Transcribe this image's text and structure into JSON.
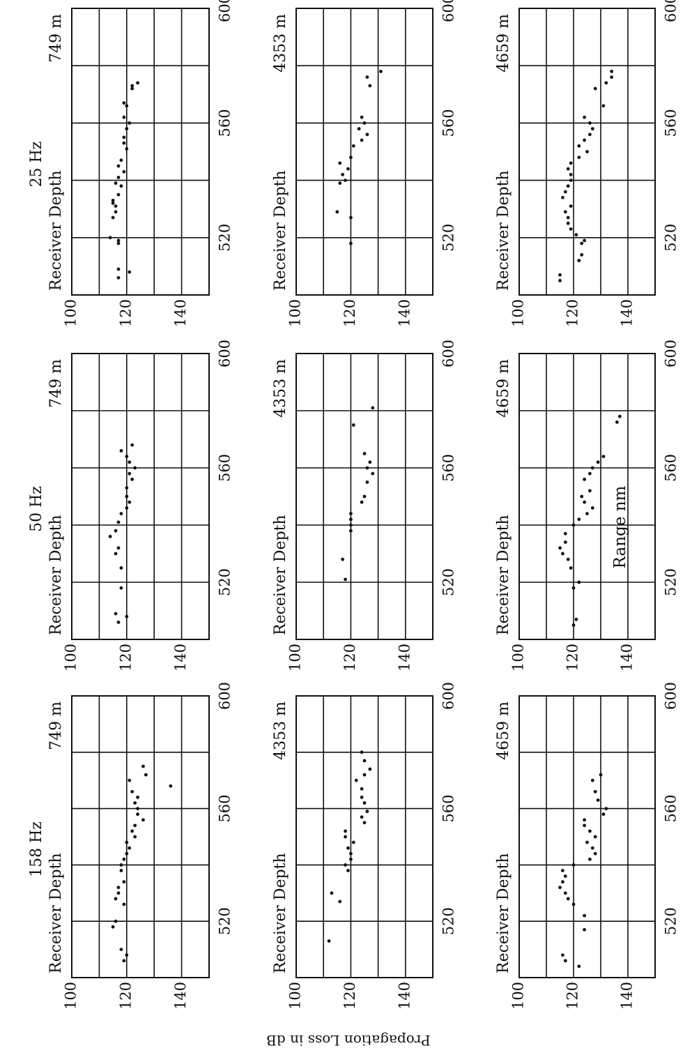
{
  "axis_labels": {
    "x": "Range nm",
    "y": "Propagation Loss in dB"
  },
  "colors": {
    "ink": "#111111",
    "paper": "#ffffff"
  },
  "chart_data": [
    {
      "type": "scatter",
      "frequency": "25 Hz",
      "depth_label": "Receiver Depth",
      "depth": "749 m",
      "xticks": [
        520,
        560,
        600
      ],
      "yticks": [
        100,
        120,
        140
      ],
      "xlim": [
        500,
        600
      ],
      "ylim": [
        100,
        150
      ],
      "grid": true,
      "points": [
        [
          506,
          117
        ],
        [
          508,
          121
        ],
        [
          509,
          117
        ],
        [
          518,
          117
        ],
        [
          519,
          117
        ],
        [
          520,
          114
        ],
        [
          527,
          115
        ],
        [
          529,
          116
        ],
        [
          531,
          116
        ],
        [
          532,
          115
        ],
        [
          533,
          115
        ],
        [
          535,
          117
        ],
        [
          538,
          118
        ],
        [
          539,
          116
        ],
        [
          541,
          117
        ],
        [
          543,
          119
        ],
        [
          545,
          117
        ],
        [
          547,
          118
        ],
        [
          551,
          120
        ],
        [
          553,
          119
        ],
        [
          555,
          119
        ],
        [
          558,
          120
        ],
        [
          560,
          121
        ],
        [
          562,
          119
        ],
        [
          566,
          120
        ],
        [
          567,
          119
        ],
        [
          572,
          122
        ],
        [
          573,
          122
        ],
        [
          574,
          124
        ]
      ]
    },
    {
      "type": "scatter",
      "frequency": "50 Hz",
      "depth_label": "Receiver Depth",
      "depth": "749 m",
      "xticks": [
        520,
        560,
        600
      ],
      "yticks": [
        100,
        120,
        140
      ],
      "xlim": [
        500,
        600
      ],
      "ylim": [
        100,
        150
      ],
      "grid": true,
      "points": [
        [
          506,
          117
        ],
        [
          508,
          120
        ],
        [
          509,
          116
        ],
        [
          518,
          118
        ],
        [
          525,
          118
        ],
        [
          530,
          116
        ],
        [
          532,
          117
        ],
        [
          536,
          114
        ],
        [
          538,
          116
        ],
        [
          541,
          117
        ],
        [
          544,
          118
        ],
        [
          546,
          120
        ],
        [
          548,
          121
        ],
        [
          550,
          120
        ],
        [
          553,
          120
        ],
        [
          556,
          122
        ],
        [
          558,
          121
        ],
        [
          560,
          123
        ],
        [
          562,
          121
        ],
        [
          564,
          120
        ],
        [
          566,
          118
        ],
        [
          568,
          122
        ]
      ]
    },
    {
      "type": "scatter",
      "frequency": "158 Hz",
      "depth_label": "Receiver Depth",
      "depth": "749 m",
      "xticks": [
        520,
        560,
        600
      ],
      "yticks": [
        100,
        120,
        140
      ],
      "xlim": [
        500,
        600
      ],
      "ylim": [
        100,
        150
      ],
      "grid": true,
      "points": [
        [
          506,
          119
        ],
        [
          508,
          120
        ],
        [
          510,
          118
        ],
        [
          518,
          115
        ],
        [
          520,
          116
        ],
        [
          526,
          119
        ],
        [
          528,
          116
        ],
        [
          530,
          117
        ],
        [
          532,
          117
        ],
        [
          534,
          119
        ],
        [
          538,
          118
        ],
        [
          540,
          118
        ],
        [
          542,
          119
        ],
        [
          544,
          120
        ],
        [
          546,
          121
        ],
        [
          548,
          120
        ],
        [
          550,
          123
        ],
        [
          552,
          122
        ],
        [
          554,
          123
        ],
        [
          556,
          126
        ],
        [
          558,
          124
        ],
        [
          560,
          124
        ],
        [
          562,
          123
        ],
        [
          564,
          124
        ],
        [
          566,
          122
        ],
        [
          570,
          121
        ],
        [
          572,
          127
        ],
        [
          575,
          126
        ],
        [
          568,
          136
        ]
      ]
    },
    {
      "type": "scatter",
      "frequency": "",
      "depth_label": "Receiver Depth",
      "depth": "4353 m",
      "xticks": [
        520,
        560,
        600
      ],
      "yticks": [
        100,
        120,
        140
      ],
      "xlim": [
        500,
        600
      ],
      "ylim": [
        100,
        150
      ],
      "grid": true,
      "points": [
        [
          518,
          120
        ],
        [
          527,
          120
        ],
        [
          529,
          115
        ],
        [
          539,
          116
        ],
        [
          540,
          118
        ],
        [
          542,
          117
        ],
        [
          544,
          119
        ],
        [
          546,
          116
        ],
        [
          548,
          120
        ],
        [
          552,
          121
        ],
        [
          554,
          124
        ],
        [
          556,
          126
        ],
        [
          558,
          123
        ],
        [
          560,
          125
        ],
        [
          562,
          124
        ],
        [
          573,
          127
        ],
        [
          576,
          126
        ],
        [
          578,
          131
        ]
      ]
    },
    {
      "type": "scatter",
      "frequency": "",
      "depth_label": "Receiver Depth",
      "depth": "4353 m",
      "xticks": [
        520,
        560,
        600
      ],
      "yticks": [
        100,
        120,
        140
      ],
      "xlim": [
        500,
        600
      ],
      "ylim": [
        100,
        150
      ],
      "grid": true,
      "points": [
        [
          521,
          118
        ],
        [
          528,
          117
        ],
        [
          538,
          120
        ],
        [
          540,
          120
        ],
        [
          542,
          120
        ],
        [
          544,
          120
        ],
        [
          548,
          124
        ],
        [
          550,
          125
        ],
        [
          555,
          126
        ],
        [
          558,
          128
        ],
        [
          560,
          126
        ],
        [
          562,
          127
        ],
        [
          565,
          125
        ],
        [
          575,
          121
        ],
        [
          581,
          128
        ]
      ]
    },
    {
      "type": "scatter",
      "frequency": "",
      "depth_label": "Receiver Depth",
      "depth": "4353 m",
      "xticks": [
        520,
        560,
        600
      ],
      "yticks": [
        100,
        120,
        140
      ],
      "xlim": [
        500,
        600
      ],
      "ylim": [
        100,
        150
      ],
      "grid": true,
      "points": [
        [
          513,
          112
        ],
        [
          527,
          116
        ],
        [
          530,
          113
        ],
        [
          538,
          119
        ],
        [
          540,
          118
        ],
        [
          542,
          120
        ],
        [
          544,
          120
        ],
        [
          546,
          119
        ],
        [
          548,
          121
        ],
        [
          550,
          118
        ],
        [
          552,
          118
        ],
        [
          555,
          125
        ],
        [
          557,
          124
        ],
        [
          559,
          126
        ],
        [
          562,
          125
        ],
        [
          564,
          124
        ],
        [
          567,
          124
        ],
        [
          570,
          122
        ],
        [
          572,
          125
        ],
        [
          574,
          127
        ],
        [
          577,
          125
        ],
        [
          580,
          124
        ]
      ]
    },
    {
      "type": "scatter",
      "frequency": "",
      "depth_label": "Receiver Depth",
      "depth": "4659 m",
      "xticks": [
        520,
        560,
        600
      ],
      "yticks": [
        100,
        120,
        140
      ],
      "xlim": [
        500,
        600
      ],
      "ylim": [
        100,
        150
      ],
      "grid": true,
      "points": [
        [
          505,
          115
        ],
        [
          507,
          115
        ],
        [
          512,
          122
        ],
        [
          514,
          123
        ],
        [
          518,
          123
        ],
        [
          519,
          124
        ],
        [
          521,
          121
        ],
        [
          523,
          119
        ],
        [
          525,
          118
        ],
        [
          527,
          118
        ],
        [
          529,
          117
        ],
        [
          531,
          119
        ],
        [
          534,
          116
        ],
        [
          536,
          117
        ],
        [
          538,
          118
        ],
        [
          540,
          119
        ],
        [
          542,
          119
        ],
        [
          544,
          118
        ],
        [
          546,
          119
        ],
        [
          548,
          122
        ],
        [
          550,
          125
        ],
        [
          552,
          122
        ],
        [
          554,
          124
        ],
        [
          556,
          126
        ],
        [
          558,
          127
        ],
        [
          560,
          126
        ],
        [
          562,
          124
        ],
        [
          566,
          131
        ],
        [
          572,
          128
        ],
        [
          574,
          132
        ],
        [
          576,
          134
        ],
        [
          578,
          134
        ]
      ]
    },
    {
      "type": "scatter",
      "frequency": "",
      "depth_label": "Receiver Depth",
      "depth": "4659 m",
      "xticks": [
        520,
        560,
        600
      ],
      "yticks": [
        100,
        120,
        140
      ],
      "xlim": [
        500,
        600
      ],
      "ylim": [
        100,
        150
      ],
      "grid": true,
      "points": [
        [
          505,
          120
        ],
        [
          507,
          121
        ],
        [
          518,
          120
        ],
        [
          520,
          122
        ],
        [
          525,
          119
        ],
        [
          528,
          118
        ],
        [
          530,
          116
        ],
        [
          532,
          115
        ],
        [
          534,
          117
        ],
        [
          537,
          117
        ],
        [
          540,
          120
        ],
        [
          542,
          122
        ],
        [
          544,
          125
        ],
        [
          546,
          127
        ],
        [
          548,
          124
        ],
        [
          550,
          123
        ],
        [
          552,
          126
        ],
        [
          556,
          124
        ],
        [
          558,
          126
        ],
        [
          560,
          127
        ],
        [
          562,
          129
        ],
        [
          564,
          131
        ],
        [
          576,
          136
        ],
        [
          578,
          137
        ]
      ]
    },
    {
      "type": "scatter",
      "frequency": "",
      "depth_label": "Receiver Depth",
      "depth": "4659 m",
      "xticks": [
        520,
        560,
        600
      ],
      "yticks": [
        100,
        120,
        140
      ],
      "xlim": [
        500,
        600
      ],
      "ylim": [
        100,
        150
      ],
      "grid": true,
      "points": [
        [
          504,
          122
        ],
        [
          506,
          117
        ],
        [
          508,
          116
        ],
        [
          517,
          124
        ],
        [
          522,
          124
        ],
        [
          526,
          120
        ],
        [
          528,
          118
        ],
        [
          530,
          117
        ],
        [
          532,
          115
        ],
        [
          534,
          116
        ],
        [
          536,
          117
        ],
        [
          538,
          116
        ],
        [
          540,
          120
        ],
        [
          542,
          126
        ],
        [
          544,
          128
        ],
        [
          546,
          127
        ],
        [
          548,
          125
        ],
        [
          550,
          128
        ],
        [
          552,
          126
        ],
        [
          554,
          124
        ],
        [
          556,
          124
        ],
        [
          558,
          131
        ],
        [
          560,
          132
        ],
        [
          563,
          129
        ],
        [
          566,
          128
        ],
        [
          570,
          127
        ],
        [
          572,
          130
        ]
      ]
    }
  ]
}
